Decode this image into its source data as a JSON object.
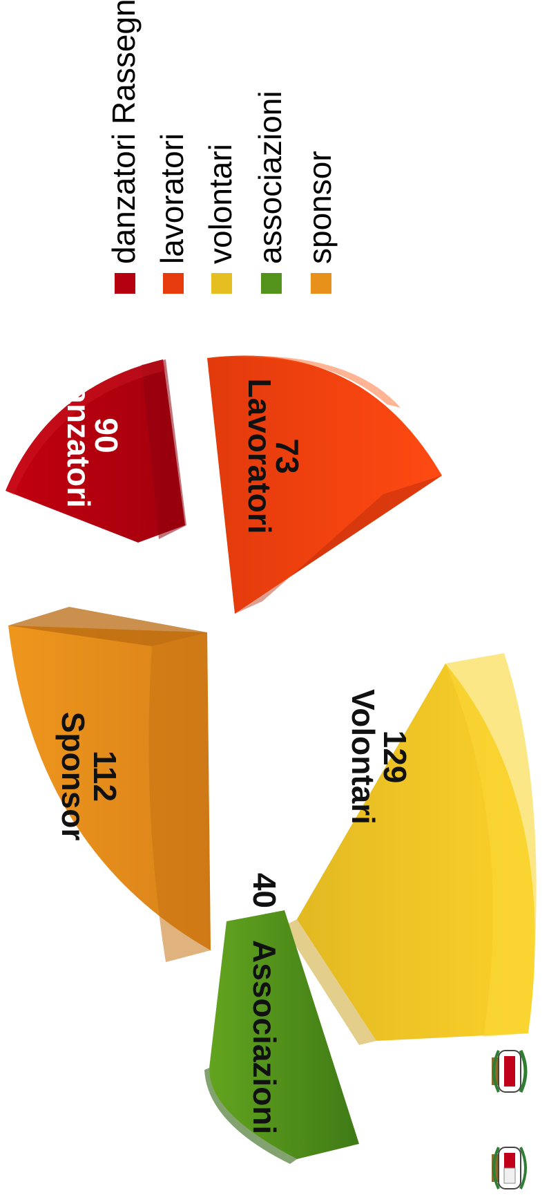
{
  "chart_data": {
    "type": "pie",
    "orientation": "rotated",
    "three_d": true,
    "exploded": true,
    "title": "",
    "slices": [
      {
        "label": "Danzatori",
        "value": 90,
        "legend": "danzatori Rassegna",
        "color": "#b5000f"
      },
      {
        "label": "Lavoratori",
        "value": 73,
        "legend": "lavoratori",
        "color": "#e63c0d"
      },
      {
        "label": "Volontari",
        "value": 129,
        "legend": "volontari",
        "color": "#e5be22"
      },
      {
        "label": "Associazioni",
        "value": 40,
        "legend": "associazioni",
        "color": "#53921b"
      },
      {
        "label": "Sponsor",
        "value": 112,
        "legend": "sponsor",
        "color": "#e7901b"
      }
    ],
    "legend_position": "right",
    "grid": false
  },
  "crests": [
    {
      "icon": "coat-of-arms-icon"
    },
    {
      "icon": "coat-of-arms-icon"
    }
  ]
}
